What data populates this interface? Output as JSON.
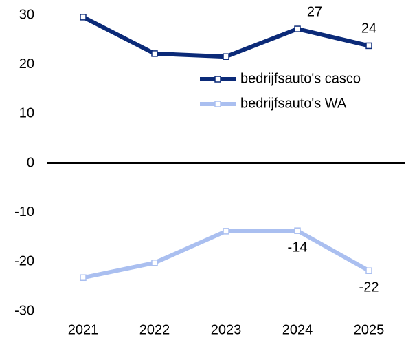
{
  "chart_data": {
    "type": "line",
    "categories": [
      "2021",
      "2022",
      "2023",
      "2024",
      "2025"
    ],
    "series": [
      {
        "name": "bedrijfsauto's casco",
        "color": "#0b2a78",
        "values": [
          29.6,
          22.2,
          21.6,
          27.2,
          23.8
        ],
        "value_labels": [
          null,
          null,
          null,
          "27",
          "24"
        ]
      },
      {
        "name": "bedrijfsauto's WA",
        "color": "#aabff0",
        "values": [
          -23.2,
          -20.2,
          -13.8,
          -13.7,
          -21.8
        ],
        "value_labels": [
          null,
          null,
          null,
          "-14",
          "-22"
        ]
      }
    ],
    "ylim": [
      -30,
      30
    ],
    "yticks": [
      30,
      20,
      10,
      0,
      -10,
      -20,
      -30
    ],
    "grid": false,
    "legend": "upper right"
  }
}
